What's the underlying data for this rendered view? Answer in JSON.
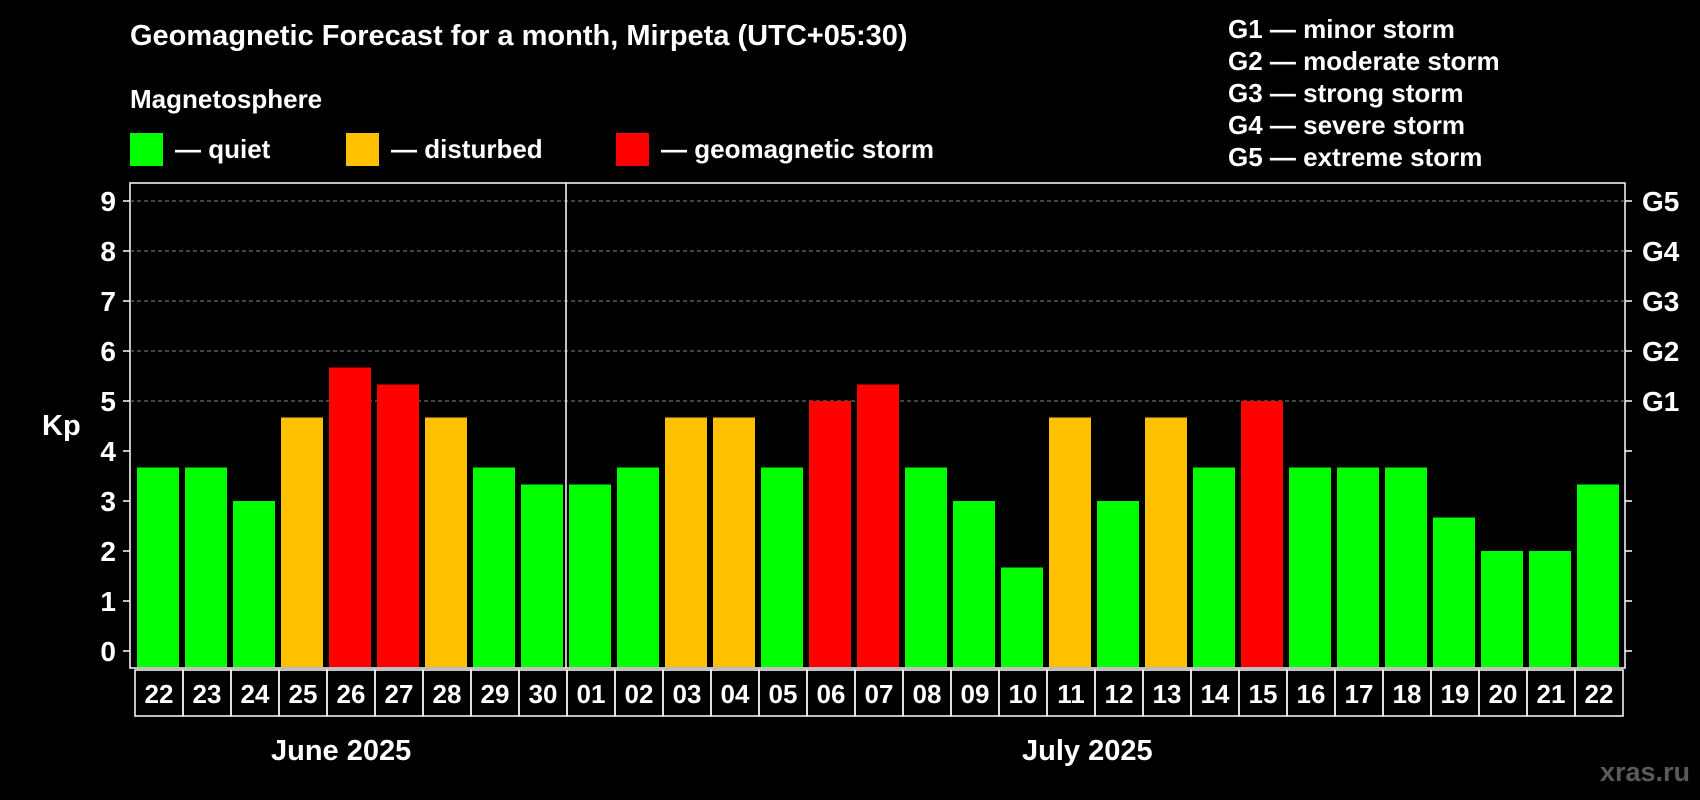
{
  "title": "Geomagnetic Forecast for a month, Mirpeta (UTC+05:30)",
  "legend": {
    "title": "Magnetosphere",
    "items": [
      {
        "label": "— quiet",
        "color": "#00ff00"
      },
      {
        "label": "— disturbed",
        "color": "#ffc000"
      },
      {
        "label": "— geomagnetic storm",
        "color": "#ff0000"
      }
    ]
  },
  "storm_levels": [
    "G1 — minor storm",
    "G2 — moderate storm",
    "G3 — strong storm",
    "G4 — severe storm",
    "G5 — extreme storm"
  ],
  "credit": "xras.ru",
  "chart_data": {
    "type": "bar",
    "ylabel": "Kp",
    "ylim": [
      0,
      9
    ],
    "yticks": [
      0,
      1,
      2,
      3,
      4,
      5,
      6,
      7,
      8,
      9
    ],
    "right_axis": [
      {
        "value": 5,
        "label": "G1"
      },
      {
        "value": 6,
        "label": "G2"
      },
      {
        "value": 7,
        "label": "G3"
      },
      {
        "value": 8,
        "label": "G4"
      },
      {
        "value": 9,
        "label": "G5"
      }
    ],
    "categories": [
      "22",
      "23",
      "24",
      "25",
      "26",
      "27",
      "28",
      "29",
      "30",
      "01",
      "02",
      "03",
      "04",
      "05",
      "06",
      "07",
      "08",
      "09",
      "10",
      "11",
      "12",
      "13",
      "14",
      "15",
      "16",
      "17",
      "18",
      "19",
      "20",
      "21",
      "22"
    ],
    "values": [
      3.67,
      3.67,
      3.0,
      4.67,
      5.67,
      5.33,
      4.67,
      3.67,
      3.33,
      3.33,
      3.67,
      4.67,
      4.67,
      3.67,
      5.0,
      5.33,
      3.67,
      3.0,
      1.67,
      4.67,
      3.0,
      4.67,
      3.67,
      5.0,
      3.67,
      3.67,
      3.67,
      2.67,
      2.0,
      2.0,
      3.33
    ],
    "colors": [
      "#00ff00",
      "#00ff00",
      "#00ff00",
      "#ffc000",
      "#ff0000",
      "#ff0000",
      "#ffc000",
      "#00ff00",
      "#00ff00",
      "#00ff00",
      "#00ff00",
      "#ffc000",
      "#ffc000",
      "#00ff00",
      "#ff0000",
      "#ff0000",
      "#00ff00",
      "#00ff00",
      "#00ff00",
      "#ffc000",
      "#00ff00",
      "#ffc000",
      "#00ff00",
      "#ff0000",
      "#00ff00",
      "#00ff00",
      "#00ff00",
      "#00ff00",
      "#00ff00",
      "#00ff00",
      "#00ff00"
    ],
    "months": [
      {
        "label": "June 2025",
        "start": 0,
        "count": 9
      },
      {
        "label": "July 2025",
        "start": 9,
        "count": 22
      }
    ],
    "gridlines": [
      5,
      6,
      7,
      8,
      9
    ]
  }
}
